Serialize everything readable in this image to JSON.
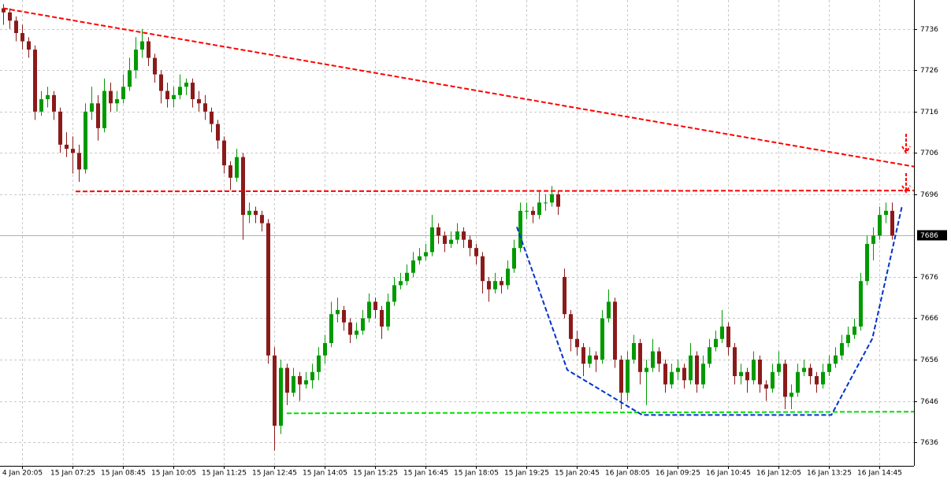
{
  "chart_data": {
    "type": "candlestick",
    "up_color": "#009a00",
    "down_color": "#8b1a1a",
    "grid": true,
    "ylim": [
      7630.3,
      7743
    ],
    "yticks": [
      7636,
      7646,
      7656,
      7666,
      7676,
      7696,
      7706,
      7716,
      7726,
      7736
    ],
    "current_price": 7686,
    "categories": [
      null,
      null,
      null,
      "4 Jan 20:05",
      null,
      null,
      null,
      null,
      null,
      null,
      null,
      "15 Jan 07:25",
      null,
      null,
      null,
      null,
      null,
      null,
      null,
      "15 Jan 08:45",
      null,
      null,
      null,
      null,
      null,
      null,
      null,
      "15 Jan 10:05",
      null,
      null,
      null,
      null,
      null,
      null,
      null,
      "15 Jan 11:25",
      null,
      null,
      null,
      null,
      null,
      null,
      null,
      "15 Jan 12:45",
      null,
      null,
      null,
      null,
      null,
      null,
      null,
      "15 Jan 14:05",
      null,
      null,
      null,
      null,
      null,
      null,
      null,
      "15 Jan 15:25",
      null,
      null,
      null,
      null,
      null,
      null,
      null,
      "15 Jan 16:45",
      null,
      null,
      null,
      null,
      null,
      null,
      null,
      "15 Jan 18:05",
      null,
      null,
      null,
      null,
      null,
      null,
      null,
      "15 Jan 19:25",
      null,
      null,
      null,
      null,
      null,
      null,
      null,
      "15 Jan 20:45",
      null,
      null,
      null,
      null,
      null,
      null,
      null,
      "16 Jan 08:05",
      null,
      null,
      null,
      null,
      null,
      null,
      null,
      "16 Jan 09:25",
      null,
      null,
      null,
      null,
      null,
      null,
      null,
      "16 Jan 10:45",
      null,
      null,
      null,
      null,
      null,
      null,
      null,
      "16 Jan 12:05",
      null,
      null,
      null,
      null,
      null,
      null,
      null,
      "16 Jan 13:25",
      null,
      null,
      null,
      null,
      null,
      null,
      null,
      "16 Jan 14:45",
      null,
      null
    ],
    "ohlc": [
      [
        7741,
        7742,
        7737,
        7740
      ],
      [
        7740,
        7741,
        7736,
        7738
      ],
      [
        7738,
        7739,
        7733,
        7735
      ],
      [
        7735,
        7737,
        7731,
        7733
      ],
      [
        7733,
        7734,
        7729,
        7731
      ],
      [
        7731,
        7732,
        7714,
        7716
      ],
      [
        7716,
        7721,
        7715,
        7719
      ],
      [
        7719,
        7722,
        7717,
        7720
      ],
      [
        7720,
        7721,
        7714,
        7716
      ],
      [
        7716,
        7717,
        7706,
        7708
      ],
      [
        7708,
        7711,
        7705,
        7707
      ],
      [
        7707,
        7710,
        7701,
        7706
      ],
      [
        7706,
        7708,
        7699,
        7702
      ],
      [
        7702,
        7718,
        7701,
        7716
      ],
      [
        7716,
        7722,
        7714,
        7718
      ],
      [
        7718,
        7720,
        7709,
        7712
      ],
      [
        7712,
        7724,
        7711,
        7721
      ],
      [
        7721,
        7723,
        7716,
        7718
      ],
      [
        7718,
        7721,
        7716,
        7719
      ],
      [
        7719,
        7725,
        7718,
        7722
      ],
      [
        7722,
        7729,
        7721,
        7726
      ],
      [
        7726,
        7734,
        7724,
        7731
      ],
      [
        7731,
        7736,
        7729,
        7733
      ],
      [
        7733,
        7734,
        7727,
        7729
      ],
      [
        7729,
        7730,
        7723,
        7725
      ],
      [
        7725,
        7726,
        7718,
        7721
      ],
      [
        7721,
        7723,
        7717,
        7719
      ],
      [
        7719,
        7722,
        7717,
        7720
      ],
      [
        7720,
        7725,
        7719,
        7722
      ],
      [
        7722,
        7724,
        7720,
        7723
      ],
      [
        7723,
        7724,
        7717,
        7719
      ],
      [
        7719,
        7721,
        7716,
        7718
      ],
      [
        7718,
        7720,
        7714,
        7716
      ],
      [
        7716,
        7717,
        7711,
        7713
      ],
      [
        7713,
        7714,
        7707,
        7709
      ],
      [
        7709,
        7710,
        7701,
        7703
      ],
      [
        7703,
        7704,
        7697,
        7700
      ],
      [
        7700,
        7707,
        7699,
        7705
      ],
      [
        7705,
        7706,
        7685,
        7691
      ],
      [
        7691,
        7694,
        7689,
        7692
      ],
      [
        7692,
        7693,
        7689,
        7691
      ],
      [
        7691,
        7692,
        7687,
        7689
      ],
      [
        7689,
        7690,
        7655,
        7657
      ],
      [
        7657,
        7659,
        7634,
        7640
      ],
      [
        7640,
        7656,
        7638,
        7654
      ],
      [
        7654,
        7655,
        7645,
        7648
      ],
      [
        7648,
        7654,
        7647,
        7652
      ],
      [
        7652,
        7653,
        7646,
        7650
      ],
      [
        7650,
        7653,
        7649,
        7651
      ],
      [
        7651,
        7655,
        7649,
        7653
      ],
      [
        7653,
        7659,
        7651,
        7657
      ],
      [
        7657,
        7662,
        7655,
        7660
      ],
      [
        7660,
        7670,
        7659,
        7667
      ],
      [
        7667,
        7671,
        7665,
        7668
      ],
      [
        7668,
        7669,
        7663,
        7665
      ],
      [
        7665,
        7666,
        7660,
        7662
      ],
      [
        7662,
        7665,
        7661,
        7663
      ],
      [
        7663,
        7668,
        7662,
        7666
      ],
      [
        7666,
        7672,
        7665,
        7670
      ],
      [
        7670,
        7671,
        7666,
        7668
      ],
      [
        7668,
        7669,
        7661,
        7664
      ],
      [
        7664,
        7672,
        7663,
        7670
      ],
      [
        7670,
        7676,
        7669,
        7674
      ],
      [
        7674,
        7677,
        7673,
        7675
      ],
      [
        7675,
        7679,
        7674,
        7677
      ],
      [
        7677,
        7682,
        7676,
        7680
      ],
      [
        7680,
        7683,
        7679,
        7681
      ],
      [
        7681,
        7684,
        7680,
        7682
      ],
      [
        7682,
        7691,
        7681,
        7688
      ],
      [
        7688,
        7689,
        7684,
        7686
      ],
      [
        7686,
        7687,
        7682,
        7684
      ],
      [
        7684,
        7687,
        7683,
        7685
      ],
      [
        7685,
        7689,
        7684,
        7687
      ],
      [
        7687,
        7688,
        7683,
        7685
      ],
      [
        7685,
        7686,
        7681,
        7683
      ],
      [
        7683,
        7684,
        7679,
        7681
      ],
      [
        7681,
        7682,
        7672,
        7675
      ],
      [
        7675,
        7676,
        7670,
        7673
      ],
      [
        7673,
        7677,
        7672,
        7675
      ],
      [
        7675,
        7676,
        7672,
        7674
      ],
      [
        7674,
        7680,
        7673,
        7678
      ],
      [
        7678,
        7685,
        7677,
        7683
      ],
      [
        7683,
        7694,
        7682,
        7692
      ],
      [
        7692,
        7694,
        7690,
        7692
      ],
      [
        7692,
        7693,
        7689,
        7691
      ],
      [
        7691,
        7697,
        7690,
        7694
      ],
      [
        7694,
        7696,
        7692,
        7694
      ],
      [
        7694,
        7698,
        7693,
        7696
      ],
      [
        7696,
        7697,
        7691,
        7693
      ],
      [
        7676,
        7678,
        7666,
        7667
      ],
      [
        7667,
        7668,
        7658,
        7661
      ],
      [
        7661,
        7663,
        7657,
        7659
      ],
      [
        7659,
        7660,
        7652,
        7655
      ],
      [
        7655,
        7659,
        7654,
        7657
      ],
      [
        7657,
        7658,
        7653,
        7656
      ],
      [
        7656,
        7668,
        7655,
        7666
      ],
      [
        7666,
        7673,
        7665,
        7670
      ],
      [
        7670,
        7671,
        7654,
        7656
      ],
      [
        7656,
        7657,
        7644,
        7648
      ],
      [
        7648,
        7658,
        7646,
        7656
      ],
      [
        7656,
        7662,
        7655,
        7660
      ],
      [
        7660,
        7661,
        7650,
        7653
      ],
      [
        7653,
        7656,
        7645,
        7654
      ],
      [
        7654,
        7661,
        7653,
        7658
      ],
      [
        7658,
        7659,
        7653,
        7655
      ],
      [
        7655,
        7656,
        7648,
        7650
      ],
      [
        7650,
        7655,
        7649,
        7653
      ],
      [
        7653,
        7656,
        7651,
        7654
      ],
      [
        7654,
        7655,
        7649,
        7651
      ],
      [
        7651,
        7660,
        7650,
        7657
      ],
      [
        7657,
        7658,
        7648,
        7650
      ],
      [
        7650,
        7657,
        7649,
        7655
      ],
      [
        7655,
        7661,
        7654,
        7659
      ],
      [
        7659,
        7663,
        7658,
        7661
      ],
      [
        7661,
        7668,
        7660,
        7664
      ],
      [
        7664,
        7665,
        7657,
        7659
      ],
      [
        7659,
        7660,
        7650,
        7652
      ],
      [
        7652,
        7655,
        7650,
        7653
      ],
      [
        7653,
        7654,
        7648,
        7651
      ],
      [
        7651,
        7658,
        7650,
        7656
      ],
      [
        7656,
        7657,
        7648,
        7650
      ],
      [
        7650,
        7651,
        7646,
        7649
      ],
      [
        7649,
        7655,
        7648,
        7653
      ],
      [
        7653,
        7658,
        7652,
        7655
      ],
      [
        7655,
        7656,
        7644,
        7647
      ],
      [
        7647,
        7650,
        7644,
        7648
      ],
      [
        7648,
        7655,
        7647,
        7653
      ],
      [
        7653,
        7656,
        7652,
        7654
      ],
      [
        7654,
        7655,
        7650,
        7652
      ],
      [
        7652,
        7653,
        7648,
        7650
      ],
      [
        7650,
        7655,
        7649,
        7653
      ],
      [
        7653,
        7657,
        7652,
        7655
      ],
      [
        7655,
        7659,
        7654,
        7657
      ],
      [
        7657,
        7662,
        7656,
        7660
      ],
      [
        7660,
        7664,
        7659,
        7662
      ],
      [
        7662,
        7666,
        7661,
        7664
      ],
      [
        7664,
        7677,
        7663,
        7675
      ],
      [
        7675,
        7686,
        7674,
        7684
      ],
      [
        7684,
        7688,
        7680,
        7686
      ],
      [
        7686,
        7693,
        7685,
        7691
      ],
      [
        7691,
        7694,
        7689,
        7692
      ],
      [
        7692,
        7694,
        7685,
        7686
      ]
    ],
    "trendlines": [
      {
        "color": "#ff0000",
        "points": [
          [
            0,
            7741
          ],
          [
            144.5,
            7702.7
          ]
        ]
      },
      {
        "color": "#ff0000",
        "points": [
          [
            11.5,
            7696.7
          ],
          [
            144.5,
            7696.9
          ]
        ]
      },
      {
        "color": "#00e000",
        "points": [
          [
            45,
            7643
          ],
          [
            144.5,
            7643.4
          ]
        ]
      },
      {
        "color": "#0033cc",
        "points": [
          [
            81.5,
            7688.1
          ],
          [
            89.5,
            7653.5
          ],
          [
            101.4,
            7642.6
          ],
          [
            131.4,
            7642.6
          ],
          [
            137.9,
            7661.1
          ],
          [
            142.6,
            7693.1
          ]
        ]
      }
    ]
  }
}
